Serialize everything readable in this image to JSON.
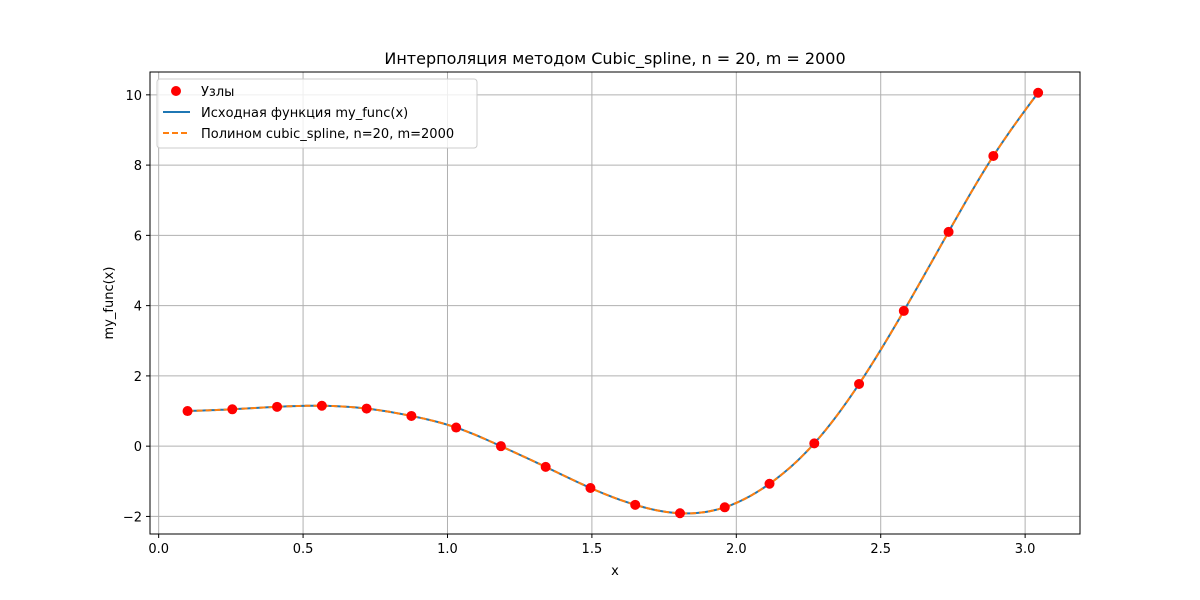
{
  "chart_data": {
    "type": "line",
    "title": "Интерполяция методом Cubic_spline, n = 20, m = 2000",
    "xlabel": "x",
    "ylabel": "my_func(x)",
    "xlim": [
      -0.03,
      3.19
    ],
    "ylim": [
      -2.5,
      10.65
    ],
    "xticks": [
      0.0,
      0.5,
      1.0,
      1.5,
      2.0,
      2.5,
      3.0
    ],
    "xtick_labels": [
      "0.0",
      "0.5",
      "1.0",
      "1.5",
      "2.0",
      "2.5",
      "3.0"
    ],
    "yticks": [
      -2,
      0,
      2,
      4,
      6,
      8,
      10
    ],
    "ytick_labels": [
      "−2",
      "0",
      "2",
      "4",
      "6",
      "8",
      "10"
    ],
    "grid": true,
    "legend_position": "top-left",
    "series": [
      {
        "name": "Узлы",
        "kind": "scatter",
        "color": "#ff0000",
        "x": [
          0.1,
          0.255,
          0.41,
          0.565,
          0.72,
          0.875,
          1.03,
          1.185,
          1.34,
          1.495,
          1.65,
          1.805,
          1.96,
          2.115,
          2.27,
          2.425,
          2.58,
          2.735,
          2.89,
          3.045
        ],
        "y": [
          1.0,
          1.05,
          1.12,
          1.15,
          1.07,
          0.86,
          0.53,
          0.0,
          -0.59,
          -1.19,
          -1.67,
          -1.91,
          -1.74,
          -1.07,
          0.08,
          1.77,
          3.85,
          6.1,
          8.26,
          10.06
        ]
      },
      {
        "name": "Исходная функция my_func(x)",
        "kind": "line",
        "color": "#1f77b4",
        "dash": "solid"
      },
      {
        "name": "Полином cubic_spline, n=20, m=2000",
        "kind": "line",
        "color": "#ff7f0e",
        "dash": "dashed"
      }
    ]
  }
}
